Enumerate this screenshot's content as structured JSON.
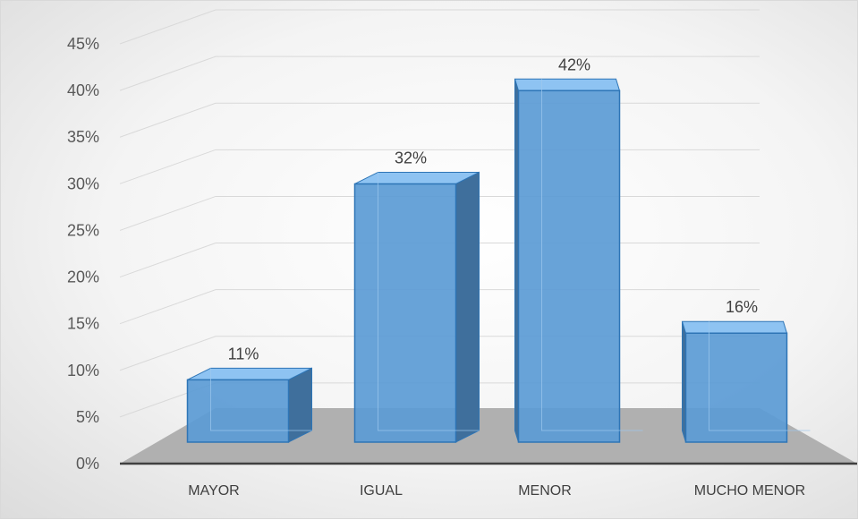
{
  "chart_data": {
    "type": "bar",
    "style": "3d-column",
    "categories": [
      "MAYOR",
      "IGUAL",
      "MENOR",
      "MUCHO MENOR"
    ],
    "values": [
      11,
      32,
      42,
      16
    ],
    "data_labels": [
      "11%",
      "32%",
      "42%",
      "16%"
    ],
    "y_tick_labels": [
      "0%",
      "5%",
      "10%",
      "15%",
      "20%",
      "25%",
      "30%",
      "35%",
      "40%",
      "45%"
    ],
    "ylim": [
      0,
      45
    ],
    "y_unit": "%",
    "grid": true,
    "legend": "none",
    "colors": {
      "bar_front": "#5b9bd5",
      "bar_top": "#8ec3f2",
      "bar_side": "#3f6f9c",
      "bar_edge": "#2e75b6",
      "floor": "#b0b0b0",
      "gridline": "#d9d9d9"
    }
  }
}
